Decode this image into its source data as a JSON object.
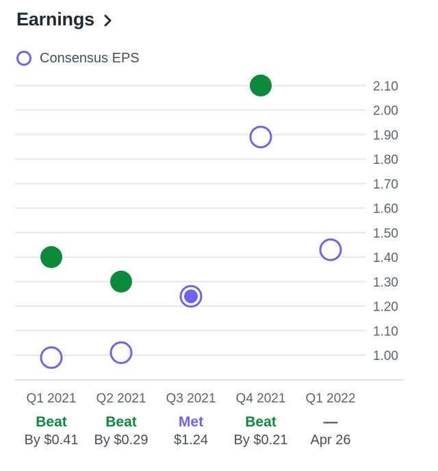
{
  "header": {
    "title": "Earnings",
    "chevron_icon": "chevron-right-icon"
  },
  "legend": {
    "label": "Consensus EPS",
    "color": "#6e62f5"
  },
  "colors": {
    "beat": "#0b8a3c",
    "met": "#6e62f5",
    "miss": "#d7191c",
    "neutral": "#5b636a",
    "grid": "#e6e8ea"
  },
  "chart_data": {
    "type": "scatter",
    "categories": [
      "Q1 2021",
      "Q2 2021",
      "Q3 2021",
      "Q4 2021",
      "Q1 2022"
    ],
    "ylim": [
      0.88,
      2.15
    ],
    "yticks": [
      1.0,
      1.1,
      1.2,
      1.3,
      1.4,
      1.5,
      1.6,
      1.7,
      1.8,
      1.9,
      2.0,
      2.1
    ],
    "series": [
      {
        "name": "Consensus EPS",
        "style": "hollow",
        "values": [
          0.99,
          1.01,
          1.24,
          1.89,
          1.43
        ]
      },
      {
        "style": "filled",
        "values": [
          1.4,
          1.3,
          1.24,
          2.1,
          null
        ]
      }
    ],
    "grid": true,
    "legend_position": "top-left"
  },
  "quarters": [
    {
      "label": "Q1 2021",
      "result": "Beat",
      "status": "beat",
      "detail": "By $0.41"
    },
    {
      "label": "Q2 2021",
      "result": "Beat",
      "status": "beat",
      "detail": "By $0.29"
    },
    {
      "label": "Q3 2021",
      "result": "Met",
      "status": "met",
      "detail": "$1.24"
    },
    {
      "label": "Q4 2021",
      "result": "Beat",
      "status": "beat",
      "detail": "By $0.21"
    },
    {
      "label": "Q1 2022",
      "result": "—",
      "status": "neutral",
      "detail": "Apr 26"
    }
  ]
}
